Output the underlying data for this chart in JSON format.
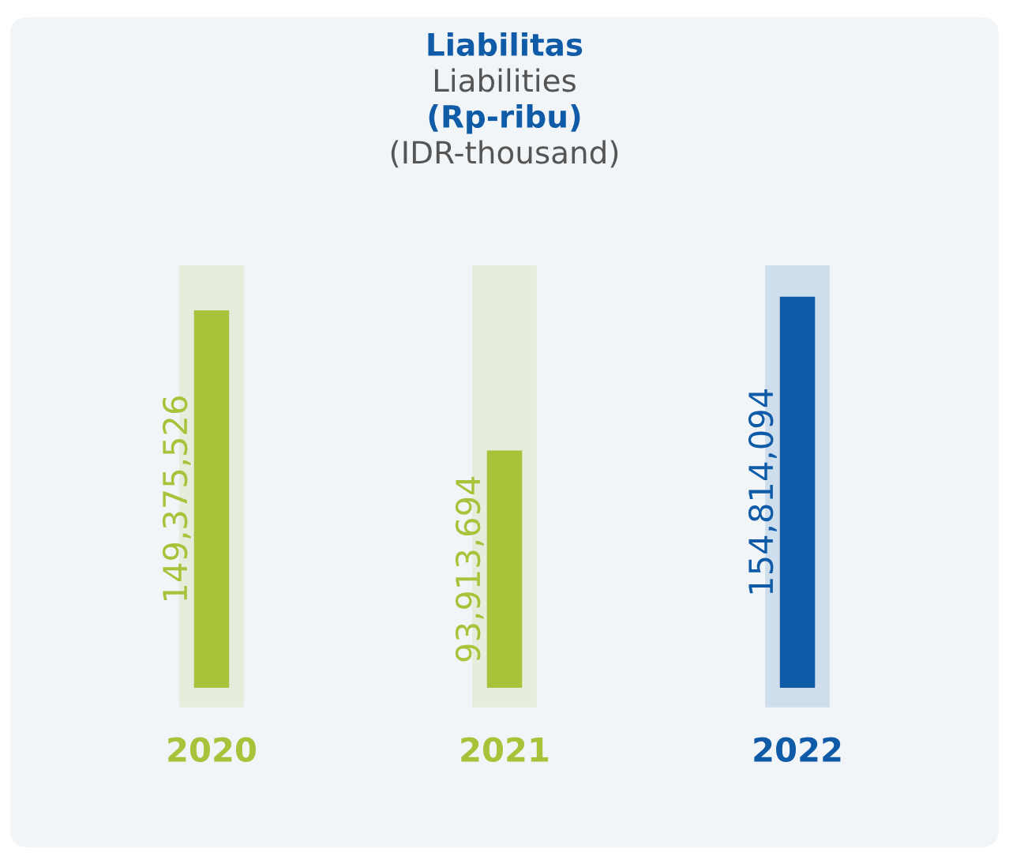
{
  "chart_data": {
    "type": "bar",
    "title": "Liabilitas",
    "subtitle": "Liabilities",
    "annotations": [
      "(Rp-ribu)",
      "(IDR-thousand)"
    ],
    "categories": [
      "2020",
      "2021",
      "2022"
    ],
    "values": [
      149375526,
      93913694,
      154814094
    ],
    "colors": [
      "#a8c23a",
      "#a8c23a",
      "#0f5ba7"
    ],
    "value_labels": [
      "149,375,526",
      "93,913,694",
      "154,814,094"
    ]
  }
}
